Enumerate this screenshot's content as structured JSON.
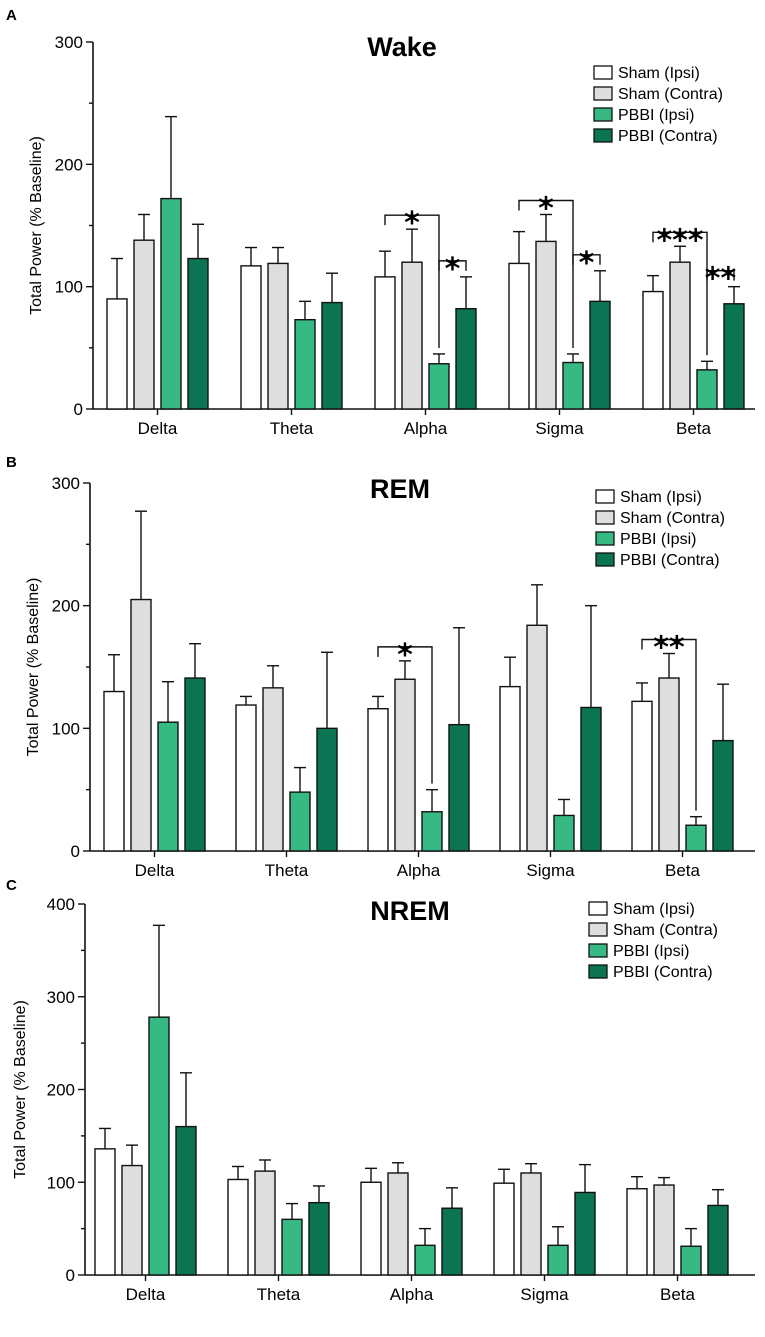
{
  "figure": {
    "colors": {
      "sham_ipsi": "#ffffff",
      "sham_contra": "#dedede",
      "pbbi_ipsi": "#37b984",
      "pbbi_contra": "#0b7553",
      "stroke": "#111111"
    }
  },
  "chart_data": [
    {
      "panel": "A",
      "type": "bar",
      "title": "Wake",
      "xlabel": "",
      "ylabel": "Total Power (% Baseline)",
      "ylim": [
        0,
        300
      ],
      "yticks": [
        0,
        100,
        200,
        300
      ],
      "legend_position": "top-right",
      "categories": [
        "Delta",
        "Theta",
        "Alpha",
        "Sigma",
        "Beta"
      ],
      "series": [
        {
          "name": "Sham (Ipsi)",
          "values": [
            90,
            117,
            108,
            119,
            96
          ],
          "errors": [
            33,
            15,
            21,
            26,
            13
          ]
        },
        {
          "name": "Sham (Contra)",
          "values": [
            138,
            119,
            120,
            137,
            120
          ],
          "errors": [
            21,
            13,
            27,
            22,
            13
          ]
        },
        {
          "name": "PBBI (Ipsi)",
          "values": [
            172,
            73,
            37,
            38,
            32
          ],
          "errors": [
            67,
            15,
            8,
            7,
            7
          ]
        },
        {
          "name": "PBBI (Contra)",
          "values": [
            123,
            87,
            82,
            88,
            86
          ],
          "errors": [
            28,
            24,
            26,
            25,
            14
          ]
        }
      ],
      "annotations": [
        {
          "category": "Alpha",
          "from": 0,
          "to": 2,
          "label": "*"
        },
        {
          "category": "Alpha",
          "from": 2,
          "to": 3,
          "label": "*"
        },
        {
          "category": "Sigma",
          "from": 0,
          "to": 2,
          "label": "*"
        },
        {
          "category": "Sigma",
          "from": 2,
          "to": 3,
          "label": "*"
        },
        {
          "category": "Beta",
          "from": 0,
          "to": 2,
          "label": "***"
        },
        {
          "category": "Beta",
          "from": 2,
          "to": 3,
          "label": "**"
        }
      ]
    },
    {
      "panel": "B",
      "type": "bar",
      "title": "REM",
      "xlabel": "",
      "ylabel": "Total Power (% Baseline)",
      "ylim": [
        0,
        300
      ],
      "yticks": [
        0,
        100,
        200,
        300
      ],
      "legend_position": "top-right",
      "categories": [
        "Delta",
        "Theta",
        "Alpha",
        "Sigma",
        "Beta"
      ],
      "series": [
        {
          "name": "Sham (Ipsi)",
          "values": [
            130,
            119,
            116,
            134,
            122
          ],
          "errors": [
            30,
            7,
            10,
            24,
            15
          ]
        },
        {
          "name": "Sham (Contra)",
          "values": [
            205,
            133,
            140,
            184,
            141
          ],
          "errors": [
            72,
            18,
            15,
            33,
            20
          ]
        },
        {
          "name": "PBBI (Ipsi)",
          "values": [
            105,
            48,
            32,
            29,
            21
          ],
          "errors": [
            33,
            20,
            18,
            13,
            7
          ]
        },
        {
          "name": "PBBI (Contra)",
          "values": [
            141,
            100,
            103,
            117,
            90
          ],
          "errors": [
            28,
            62,
            79,
            83,
            46
          ]
        }
      ],
      "annotations": [
        {
          "category": "Alpha",
          "from": 0,
          "to": 2,
          "label": "*"
        },
        {
          "category": "Beta",
          "from": 0,
          "to": 2,
          "label": "**"
        }
      ]
    },
    {
      "panel": "C",
      "type": "bar",
      "title": "NREM",
      "xlabel": "",
      "ylabel": "Total Power (% Baseline)",
      "ylim": [
        0,
        400
      ],
      "yticks": [
        0,
        100,
        200,
        300,
        400
      ],
      "legend_position": "top-right",
      "categories": [
        "Delta",
        "Theta",
        "Alpha",
        "Sigma",
        "Beta"
      ],
      "series": [
        {
          "name": "Sham (Ipsi)",
          "values": [
            136,
            103,
            100,
            99,
            93
          ],
          "errors": [
            22,
            14,
            15,
            15,
            13
          ]
        },
        {
          "name": "Sham (Contra)",
          "values": [
            118,
            112,
            110,
            110,
            97
          ],
          "errors": [
            22,
            12,
            11,
            10,
            8
          ]
        },
        {
          "name": "PBBI (Ipsi)",
          "values": [
            278,
            60,
            32,
            32,
            31
          ],
          "errors": [
            99,
            17,
            18,
            20,
            19
          ]
        },
        {
          "name": "PBBI (Contra)",
          "values": [
            160,
            78,
            72,
            89,
            75
          ],
          "errors": [
            58,
            18,
            22,
            30,
            17
          ]
        }
      ],
      "annotations": []
    }
  ]
}
